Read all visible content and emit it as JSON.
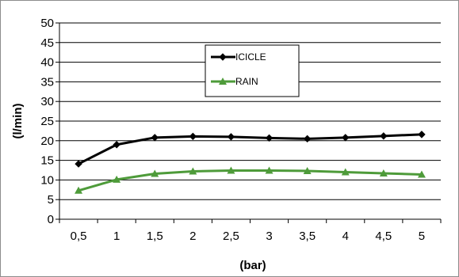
{
  "chart_data": {
    "type": "line",
    "categories": [
      "0,5",
      "1",
      "1,5",
      "2",
      "2,5",
      "3",
      "3,5",
      "4",
      "4,5",
      "5"
    ],
    "series": [
      {
        "name": "ICICLE",
        "color": "#000000",
        "marker": "diamond",
        "values": [
          14.1,
          19.0,
          20.8,
          21.1,
          21.0,
          20.7,
          20.5,
          20.8,
          21.2,
          21.6
        ]
      },
      {
        "name": "RAIN",
        "color": "#4e9b3a",
        "marker": "triangle",
        "values": [
          7.3,
          10.1,
          11.6,
          12.2,
          12.4,
          12.4,
          12.3,
          12.0,
          11.7,
          11.4
        ]
      }
    ],
    "y_ticks": [
      "0",
      "5",
      "10",
      "15",
      "20",
      "25",
      "30",
      "35",
      "40",
      "45",
      "50"
    ],
    "xlabel": "(bar)",
    "ylabel": "(l/min)",
    "ylim": [
      0,
      50
    ],
    "grid": "horizontal",
    "legend_position": "upper-center"
  }
}
